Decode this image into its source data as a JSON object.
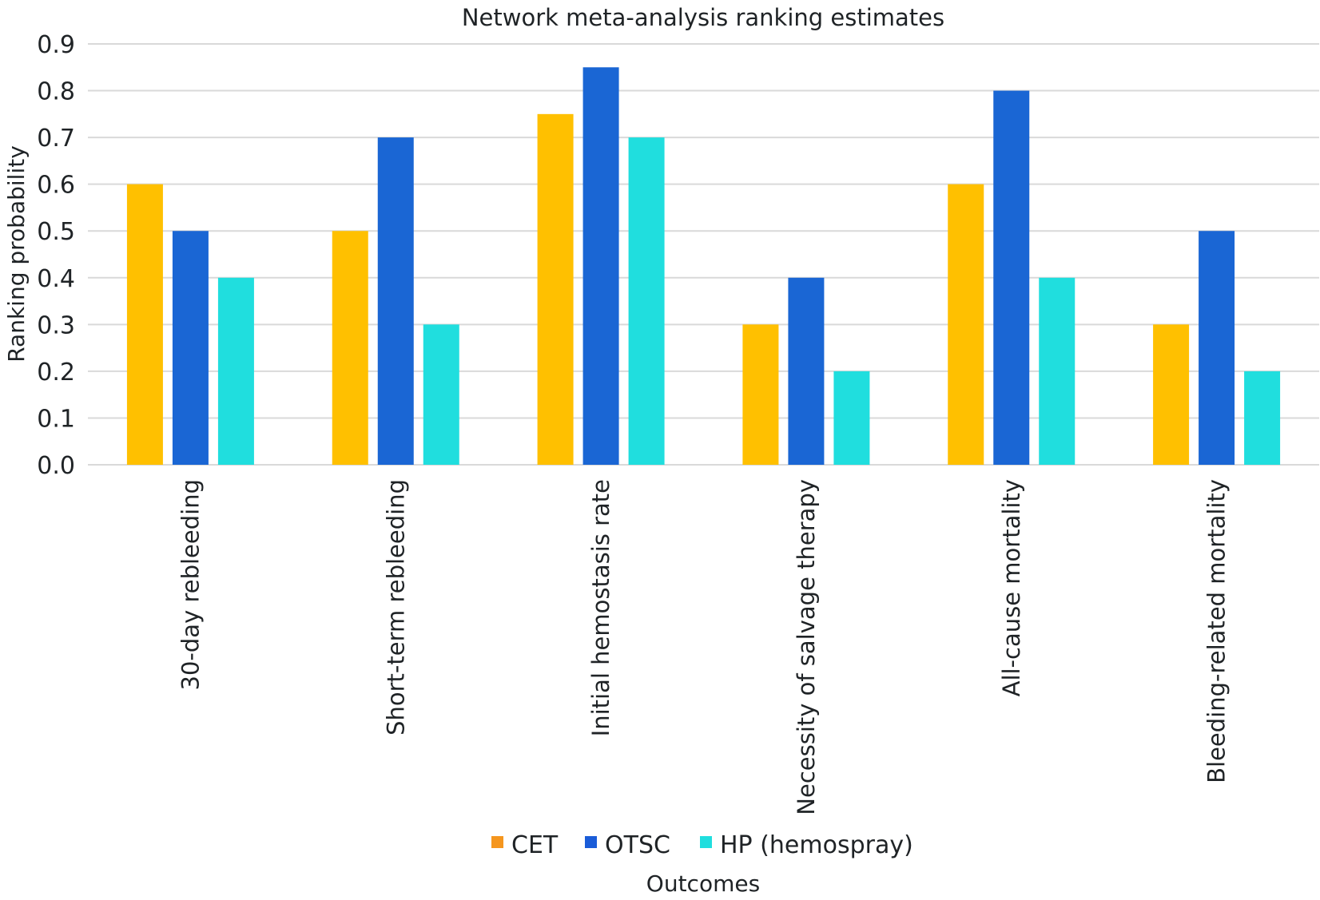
{
  "chart_data": {
    "type": "bar",
    "title": "Network meta-analysis ranking estimates",
    "xlabel": "Outcomes",
    "ylabel": "Ranking probability",
    "ylim": [
      0,
      0.9
    ],
    "yticks": [
      "0.0",
      "0.1",
      "0.2",
      "0.3",
      "0.4",
      "0.5",
      "0.6",
      "0.7",
      "0.8",
      "0.9"
    ],
    "grid": true,
    "legend_position": "bottom",
    "categories": [
      "30-day rebleeding",
      "Short-term rebleeding",
      "Initial hemostasis rate",
      "Necessity of salvage therapy",
      "All-cause mortality",
      "Bleeding-related mortality"
    ],
    "series": [
      {
        "name": "CET",
        "color": "#FFC000",
        "legend_color": "#F5961E",
        "values": [
          0.6,
          0.5,
          0.75,
          0.3,
          0.6,
          0.3
        ]
      },
      {
        "name": "OTSC",
        "color": "#1A66D4",
        "legend_color": "#1A5CD8",
        "values": [
          0.5,
          0.7,
          0.85,
          0.4,
          0.8,
          0.5
        ]
      },
      {
        "name": "HP (hemospray)",
        "color": "#20DEDE",
        "legend_color": "#20DEDE",
        "values": [
          0.4,
          0.3,
          0.7,
          0.2,
          0.4,
          0.2
        ]
      }
    ]
  }
}
